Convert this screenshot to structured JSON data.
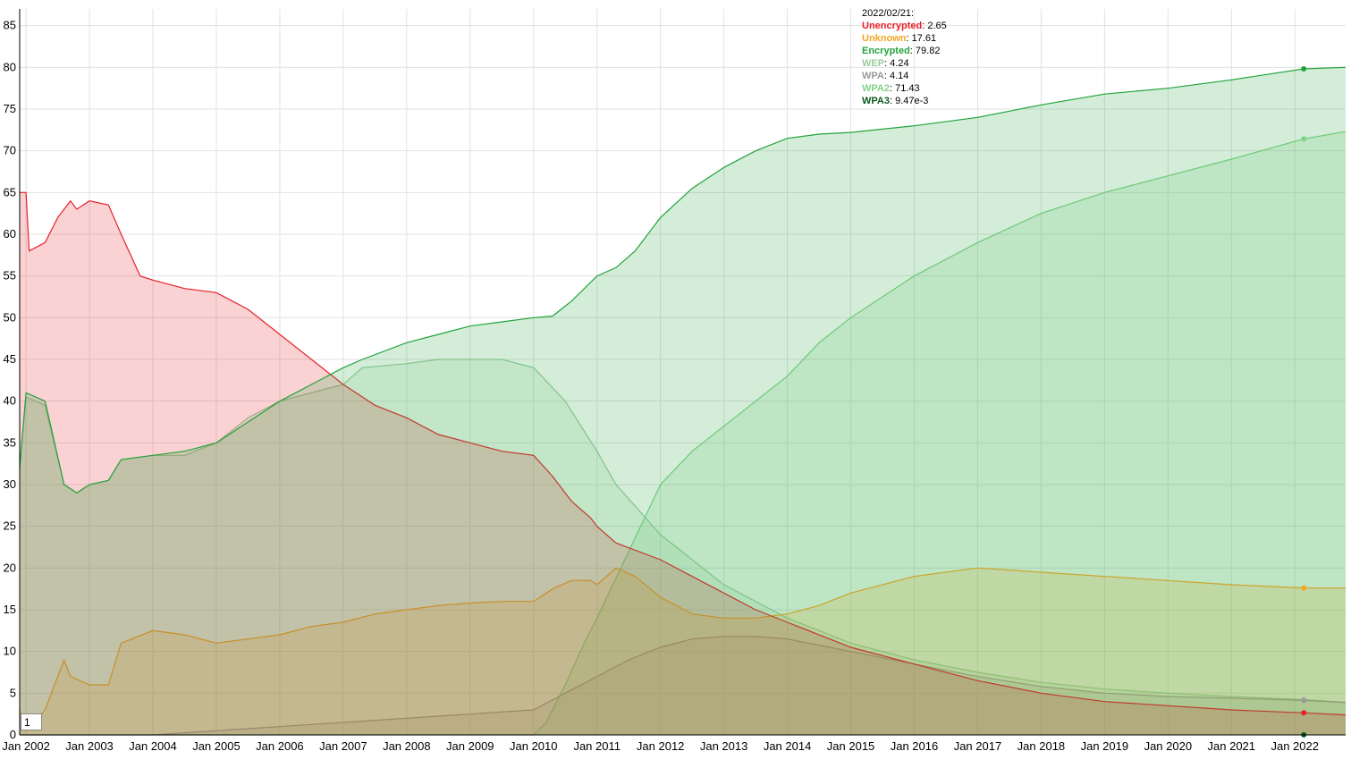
{
  "legend": {
    "date": "2022/02/21:",
    "rows": [
      {
        "name": "Unencrypted",
        "value": "2.65",
        "color": "#e8202a"
      },
      {
        "name": "Unknown",
        "value": "17.61",
        "color": "#f5a623"
      },
      {
        "name": "Encrypted",
        "value": "79.82",
        "color": "#22a33c"
      },
      {
        "name": "WEP",
        "value": "4.24",
        "color": "#9ccc9f"
      },
      {
        "name": "WPA",
        "value": "4.14",
        "color": "#9a9a9a"
      },
      {
        "name": "WPA2",
        "value": "71.43",
        "color": "#7ed487"
      },
      {
        "name": "WPA3",
        "value": "9.47e-3",
        "color": "#0b5a1e"
      }
    ]
  },
  "roll_period": "1",
  "chart_data": {
    "type": "area",
    "x_ticks": [
      "Jan 2002",
      "Jan 2003",
      "Jan 2004",
      "Jan 2005",
      "Jan 2006",
      "Jan 2007",
      "Jan 2008",
      "Jan 2009",
      "Jan 2010",
      "Jan 2011",
      "Jan 2012",
      "Jan 2013",
      "Jan 2014",
      "Jan 2015",
      "Jan 2016",
      "Jan 2017",
      "Jan 2018",
      "Jan 2019",
      "Jan 2020",
      "Jan 2021",
      "Jan 2022"
    ],
    "y_ticks": [
      0,
      5,
      10,
      15,
      20,
      25,
      30,
      35,
      40,
      45,
      50,
      55,
      60,
      65,
      70,
      75,
      80,
      85
    ],
    "x_range": [
      2001.9,
      2022.8
    ],
    "y_range": [
      0,
      87
    ],
    "grid": true,
    "highlight_x": 2022.14,
    "series": [
      {
        "name": "WEP",
        "color": "#9ccc9f",
        "points": [
          [
            2001.9,
            32
          ],
          [
            2002.0,
            40.5
          ],
          [
            2002.3,
            39.5
          ],
          [
            2002.6,
            30
          ],
          [
            2002.8,
            29
          ],
          [
            2003.0,
            30
          ],
          [
            2003.3,
            30.5
          ],
          [
            2003.5,
            33
          ],
          [
            2004.0,
            33.5
          ],
          [
            2004.5,
            33.5
          ],
          [
            2005.0,
            35
          ],
          [
            2005.5,
            38
          ],
          [
            2006.0,
            40
          ],
          [
            2006.5,
            41
          ],
          [
            2007.0,
            42
          ],
          [
            2007.3,
            44
          ],
          [
            2008.0,
            44.5
          ],
          [
            2008.5,
            45
          ],
          [
            2009.0,
            45
          ],
          [
            2009.5,
            45
          ],
          [
            2010.0,
            44
          ],
          [
            2010.5,
            40
          ],
          [
            2011.0,
            34
          ],
          [
            2011.3,
            30
          ],
          [
            2012.0,
            24
          ],
          [
            2013.0,
            18
          ],
          [
            2014.0,
            14
          ],
          [
            2015.0,
            11
          ],
          [
            2016.0,
            9
          ],
          [
            2017.0,
            7.5
          ],
          [
            2018.0,
            6.3
          ],
          [
            2019.0,
            5.5
          ],
          [
            2020.0,
            5
          ],
          [
            2021.0,
            4.6
          ],
          [
            2022.14,
            4.24
          ],
          [
            2022.8,
            3.9
          ]
        ]
      },
      {
        "name": "WPA2",
        "color": "#7ed487",
        "points": [
          [
            2001.9,
            0
          ],
          [
            2010.0,
            0
          ],
          [
            2010.2,
            1.5
          ],
          [
            2010.5,
            6
          ],
          [
            2010.8,
            11
          ],
          [
            2011.0,
            14
          ],
          [
            2011.5,
            22
          ],
          [
            2012.0,
            30
          ],
          [
            2012.5,
            34
          ],
          [
            2013.0,
            37
          ],
          [
            2013.5,
            40
          ],
          [
            2014.0,
            43
          ],
          [
            2014.5,
            47
          ],
          [
            2015.0,
            50
          ],
          [
            2015.5,
            52.5
          ],
          [
            2016.0,
            55
          ],
          [
            2016.5,
            57
          ],
          [
            2017.0,
            59
          ],
          [
            2018.0,
            62.5
          ],
          [
            2019.0,
            65
          ],
          [
            2020.0,
            67
          ],
          [
            2021.0,
            69
          ],
          [
            2022.14,
            71.43
          ],
          [
            2022.8,
            72.3
          ]
        ]
      },
      {
        "name": "WPA",
        "color": "#9a9a9a",
        "points": [
          [
            2001.9,
            0
          ],
          [
            2003.0,
            0
          ],
          [
            2004.0,
            0
          ],
          [
            2005.0,
            0.5
          ],
          [
            2006.0,
            1
          ],
          [
            2007.0,
            1.5
          ],
          [
            2008.0,
            2
          ],
          [
            2009.0,
            2.5
          ],
          [
            2010.0,
            3
          ],
          [
            2010.5,
            5
          ],
          [
            2011.0,
            7
          ],
          [
            2011.5,
            9
          ],
          [
            2012.0,
            10.5
          ],
          [
            2012.5,
            11.5
          ],
          [
            2013.0,
            11.8
          ],
          [
            2013.5,
            11.8
          ],
          [
            2014.0,
            11.5
          ],
          [
            2015.0,
            10
          ],
          [
            2016.0,
            8.5
          ],
          [
            2017.0,
            7
          ],
          [
            2018.0,
            5.8
          ],
          [
            2019.0,
            5
          ],
          [
            2020.0,
            4.6
          ],
          [
            2021.0,
            4.4
          ],
          [
            2022.14,
            4.14
          ],
          [
            2022.8,
            3.9
          ]
        ]
      },
      {
        "name": "Unknown",
        "color": "#f5a623",
        "points": [
          [
            2001.9,
            3
          ],
          [
            2002.0,
            0.5
          ],
          [
            2002.3,
            3
          ],
          [
            2002.45,
            6
          ],
          [
            2002.6,
            9
          ],
          [
            2002.7,
            7
          ],
          [
            2003.0,
            6
          ],
          [
            2003.3,
            6
          ],
          [
            2003.5,
            11
          ],
          [
            2004.0,
            12.5
          ],
          [
            2004.5,
            12
          ],
          [
            2005.0,
            11
          ],
          [
            2005.5,
            11.5
          ],
          [
            2006.0,
            12
          ],
          [
            2006.5,
            13
          ],
          [
            2007.0,
            13.5
          ],
          [
            2007.5,
            14.5
          ],
          [
            2008.0,
            15
          ],
          [
            2008.5,
            15.5
          ],
          [
            2009.0,
            15.8
          ],
          [
            2009.5,
            16
          ],
          [
            2010.0,
            16
          ],
          [
            2010.3,
            17.5
          ],
          [
            2010.6,
            18.5
          ],
          [
            2010.9,
            18.5
          ],
          [
            2011.0,
            18
          ],
          [
            2011.3,
            20
          ],
          [
            2011.6,
            19
          ],
          [
            2012.0,
            16.5
          ],
          [
            2012.5,
            14.5
          ],
          [
            2013.0,
            14
          ],
          [
            2013.5,
            14
          ],
          [
            2014.0,
            14.5
          ],
          [
            2014.5,
            15.5
          ],
          [
            2015.0,
            17
          ],
          [
            2016.0,
            19
          ],
          [
            2017.0,
            20
          ],
          [
            2018.0,
            19.5
          ],
          [
            2019.0,
            19
          ],
          [
            2020.0,
            18.5
          ],
          [
            2021.0,
            18
          ],
          [
            2022.14,
            17.61
          ],
          [
            2022.8,
            17.6
          ]
        ]
      },
      {
        "name": "Unencrypted",
        "color": "#e8202a",
        "points": [
          [
            2001.9,
            65
          ],
          [
            2002.0,
            65
          ],
          [
            2002.05,
            58
          ],
          [
            2002.3,
            59
          ],
          [
            2002.5,
            62
          ],
          [
            2002.7,
            64
          ],
          [
            2002.8,
            63
          ],
          [
            2003.0,
            64
          ],
          [
            2003.3,
            63.5
          ],
          [
            2003.5,
            60
          ],
          [
            2003.8,
            55
          ],
          [
            2004.0,
            54.5
          ],
          [
            2004.5,
            53.5
          ],
          [
            2005.0,
            53
          ],
          [
            2005.5,
            51
          ],
          [
            2006.0,
            48
          ],
          [
            2006.5,
            45
          ],
          [
            2007.0,
            42
          ],
          [
            2007.5,
            39.5
          ],
          [
            2008.0,
            38
          ],
          [
            2008.5,
            36
          ],
          [
            2009.0,
            35
          ],
          [
            2009.5,
            34
          ],
          [
            2010.0,
            33.5
          ],
          [
            2010.3,
            31
          ],
          [
            2010.6,
            28
          ],
          [
            2010.9,
            26
          ],
          [
            2011.0,
            25
          ],
          [
            2011.3,
            23
          ],
          [
            2012.0,
            21
          ],
          [
            2012.5,
            19
          ],
          [
            2013.0,
            17
          ],
          [
            2013.5,
            15
          ],
          [
            2014.0,
            13.5
          ],
          [
            2015.0,
            10.5
          ],
          [
            2016.0,
            8.5
          ],
          [
            2017.0,
            6.5
          ],
          [
            2018.0,
            5
          ],
          [
            2019.0,
            4
          ],
          [
            2020.0,
            3.5
          ],
          [
            2021.0,
            3
          ],
          [
            2022.14,
            2.65
          ],
          [
            2022.8,
            2.4
          ]
        ]
      },
      {
        "name": "Encrypted",
        "color": "#22a33c",
        "points": [
          [
            2001.9,
            32
          ],
          [
            2002.0,
            41
          ],
          [
            2002.3,
            40
          ],
          [
            2002.6,
            30
          ],
          [
            2002.8,
            29
          ],
          [
            2003.0,
            30
          ],
          [
            2003.3,
            30.5
          ],
          [
            2003.5,
            33
          ],
          [
            2004.0,
            33.5
          ],
          [
            2004.5,
            34
          ],
          [
            2005.0,
            35
          ],
          [
            2005.5,
            37.5
          ],
          [
            2006.0,
            40
          ],
          [
            2006.5,
            42
          ],
          [
            2007.0,
            44
          ],
          [
            2007.3,
            45
          ],
          [
            2008.0,
            47
          ],
          [
            2008.5,
            48
          ],
          [
            2009.0,
            49
          ],
          [
            2009.5,
            49.5
          ],
          [
            2010.0,
            50
          ],
          [
            2010.3,
            50.2
          ],
          [
            2010.6,
            52
          ],
          [
            2011.0,
            55
          ],
          [
            2011.3,
            56
          ],
          [
            2011.6,
            58
          ],
          [
            2012.0,
            62
          ],
          [
            2012.5,
            65.5
          ],
          [
            2013.0,
            68
          ],
          [
            2013.5,
            70
          ],
          [
            2014.0,
            71.5
          ],
          [
            2014.5,
            72
          ],
          [
            2015.0,
            72.2
          ],
          [
            2016.0,
            73
          ],
          [
            2017.0,
            74
          ],
          [
            2018.0,
            75.5
          ],
          [
            2019.0,
            76.8
          ],
          [
            2020.0,
            77.5
          ],
          [
            2021.0,
            78.5
          ],
          [
            2022.14,
            79.82
          ],
          [
            2022.8,
            80
          ]
        ]
      }
    ]
  }
}
